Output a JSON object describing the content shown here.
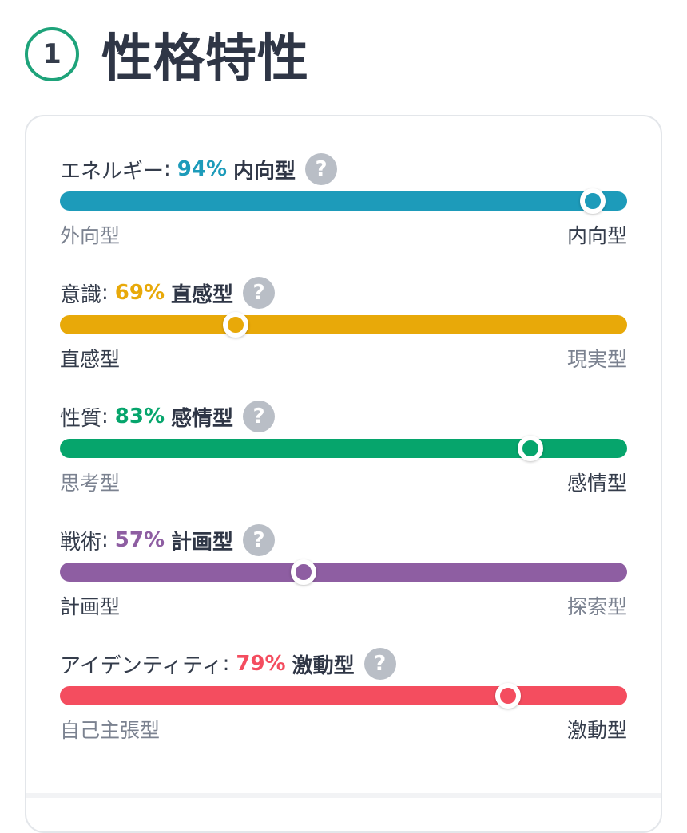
{
  "header": {
    "step_number": "1",
    "title": "性格特性"
  },
  "colors": {
    "muted_label": "#7b8290",
    "active_label": "#343c4b"
  },
  "traits": [
    {
      "name": "エネルギー",
      "percent": "94%",
      "result": "内向型",
      "left_label": "外向型",
      "right_label": "内向型",
      "active_side": "right",
      "position_fraction": 0.94,
      "color": "#1d9bba"
    },
    {
      "name": "意識",
      "percent": "69%",
      "result": "直感型",
      "left_label": "直感型",
      "right_label": "現実型",
      "active_side": "left",
      "position_fraction": 0.31,
      "color": "#e8a909"
    },
    {
      "name": "性質",
      "percent": "83%",
      "result": "感情型",
      "left_label": "思考型",
      "right_label": "感情型",
      "active_side": "right",
      "position_fraction": 0.83,
      "color": "#06a56c"
    },
    {
      "name": "戦術",
      "percent": "57%",
      "result": "計画型",
      "left_label": "計画型",
      "right_label": "探索型",
      "active_side": "left",
      "position_fraction": 0.43,
      "color": "#8e5ea2"
    },
    {
      "name": "アイデンティティ",
      "percent": "79%",
      "result": "激動型",
      "left_label": "自己主張型",
      "right_label": "激動型",
      "active_side": "right",
      "position_fraction": 0.79,
      "color": "#f44d5f"
    }
  ],
  "help_icon_glyph": "?",
  "colon": ":"
}
